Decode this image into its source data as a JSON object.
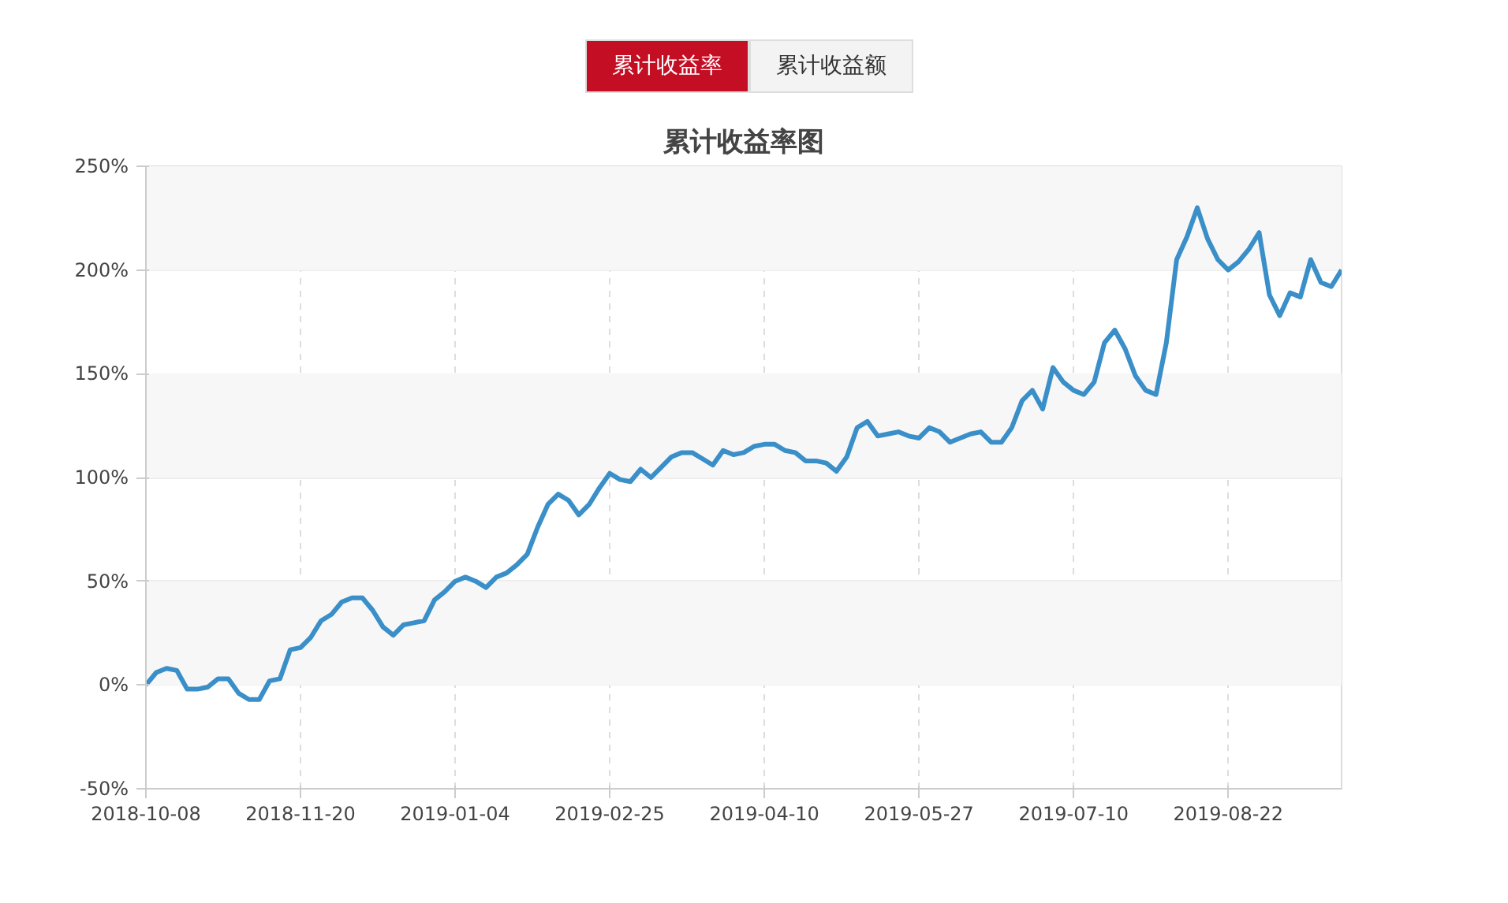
{
  "chart_data": {
    "type": "line",
    "title": "累计收益率图",
    "annotations": [
      "累计收益率",
      "累计收益额"
    ],
    "categories": [
      "2018-10-08",
      null,
      null,
      null,
      null,
      null,
      null,
      null,
      null,
      null,
      null,
      null,
      null,
      null,
      null,
      "2018-11-20",
      null,
      null,
      null,
      null,
      null,
      null,
      null,
      null,
      null,
      null,
      null,
      null,
      null,
      null,
      "2019-01-04",
      null,
      null,
      null,
      null,
      null,
      null,
      null,
      null,
      null,
      null,
      null,
      null,
      null,
      null,
      "2019-02-25",
      null,
      null,
      null,
      null,
      null,
      null,
      null,
      null,
      null,
      null,
      null,
      null,
      null,
      null,
      "2019-04-10",
      null,
      null,
      null,
      null,
      null,
      null,
      null,
      null,
      null,
      null,
      null,
      null,
      null,
      null,
      "2019-05-27",
      null,
      null,
      null,
      null,
      null,
      null,
      null,
      null,
      null,
      null,
      null,
      null,
      null,
      null,
      "2019-07-10",
      null,
      null,
      null,
      null,
      null,
      null,
      null,
      null,
      null,
      null,
      null,
      null,
      null,
      null,
      "2019-08-22",
      null,
      null,
      null,
      null,
      null,
      null,
      null,
      null,
      null,
      null,
      null
    ],
    "series": [
      {
        "color": "#3a8fc8",
        "values": [
          0,
          6,
          8,
          7,
          -2,
          -2,
          -1,
          3,
          3,
          -4,
          -7,
          -7,
          2,
          3,
          17,
          18,
          23,
          31,
          34,
          40,
          42,
          42,
          36,
          28,
          24,
          29,
          30,
          31,
          41,
          45,
          50,
          52,
          50,
          47,
          52,
          54,
          58,
          63,
          76,
          87,
          92,
          89,
          82,
          87,
          95,
          102,
          99,
          98,
          104,
          100,
          105,
          110,
          112,
          112,
          109,
          106,
          113,
          111,
          112,
          115,
          116,
          116,
          113,
          112,
          108,
          108,
          107,
          103,
          110,
          124,
          127,
          120,
          121,
          122,
          120,
          119,
          124,
          122,
          117,
          119,
          121,
          122,
          117,
          117,
          124,
          137,
          142,
          133,
          153,
          146,
          142,
          140,
          146,
          165,
          171,
          162,
          149,
          142,
          140,
          165,
          205,
          216,
          230,
          215,
          205,
          200,
          204,
          210,
          218,
          188,
          178,
          189,
          187,
          205,
          194,
          192,
          200
        ]
      }
    ],
    "ylim": [
      -50,
      250
    ],
    "yticks": [
      {
        "value": -50,
        "label": "-50%"
      },
      {
        "value": 0,
        "label": "0%"
      },
      {
        "value": 50,
        "label": "50%"
      },
      {
        "value": 100,
        "label": "100%"
      },
      {
        "value": 150,
        "label": "150%"
      },
      {
        "value": 200,
        "label": "200%"
      },
      {
        "value": 250,
        "label": "250%"
      }
    ],
    "bands": [
      {
        "axis": "y",
        "from": 0,
        "to": 50,
        "color": "#f7f7f7"
      },
      {
        "axis": "y",
        "from": 100,
        "to": 150,
        "color": "#f7f7f7"
      },
      {
        "axis": "y",
        "from": 200,
        "to": 250,
        "color": "#f7f7f7"
      }
    ],
    "grid": true,
    "marker": "none",
    "line_style": "solid"
  }
}
